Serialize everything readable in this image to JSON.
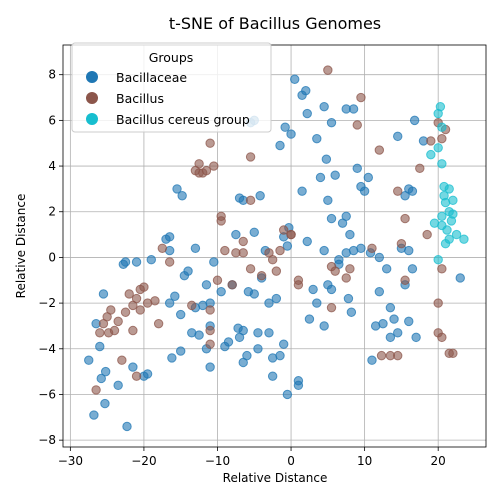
{
  "chart_data": {
    "type": "scatter",
    "title": "t-SNE of Bacillus Genomes",
    "xlabel": "Relative Distance",
    "ylabel": "Relative Distance",
    "xlim": [
      -31,
      26.5
    ],
    "ylim": [
      -8.3,
      9.3
    ],
    "xticks": [
      -30,
      -20,
      -10,
      0,
      10,
      20
    ],
    "yticks": [
      -8,
      -6,
      -4,
      -2,
      0,
      2,
      4,
      6,
      8
    ],
    "grid": true,
    "legend": {
      "title": "Groups",
      "placement": "top-left"
    },
    "series": [
      {
        "name": "Bacillaceae",
        "color": "#1f77b4",
        "points": [
          [
            -27.5,
            -4.5
          ],
          [
            -26.8,
            -6.9
          ],
          [
            -26.5,
            -2.9
          ],
          [
            -26,
            -3.9
          ],
          [
            -25.8,
            -5.3
          ],
          [
            -25.5,
            -1.6
          ],
          [
            -25.2,
            -5
          ],
          [
            -25.3,
            -6.4
          ],
          [
            -23.5,
            -5.6
          ],
          [
            -22.8,
            -0.3
          ],
          [
            -22.5,
            -0.2
          ],
          [
            -22.3,
            -7.4
          ],
          [
            -21.5,
            -4.8
          ],
          [
            -21,
            -0.2
          ],
          [
            -20,
            -5.2
          ],
          [
            -19.5,
            -5.1
          ],
          [
            -19,
            -0.1
          ],
          [
            -17,
            0.8
          ],
          [
            -16.5,
            0.9
          ],
          [
            -16.2,
            -4.4
          ],
          [
            -16.5,
            0.3
          ],
          [
            -16.5,
            -2
          ],
          [
            -15.8,
            -1.7
          ],
          [
            -15.5,
            3.0
          ],
          [
            -15,
            -4.1
          ],
          [
            -15,
            -2.5
          ],
          [
            -14.8,
            2.7
          ],
          [
            -14.5,
            -0.8
          ],
          [
            -14,
            -0.6
          ],
          [
            -13.5,
            -3.3
          ],
          [
            -13,
            0.4
          ],
          [
            -13,
            -2.2
          ],
          [
            -12.5,
            -3.4
          ],
          [
            -12,
            -2.1
          ],
          [
            -11.5,
            -4.0
          ],
          [
            -11,
            -4.8
          ],
          [
            -11,
            -3.0
          ],
          [
            -11.5,
            -1.2
          ],
          [
            -11,
            -2.0
          ],
          [
            -10.5,
            -0.2
          ],
          [
            -9.5,
            -1.5
          ],
          [
            -9,
            -3.9
          ],
          [
            -8.5,
            -3.7
          ],
          [
            -8,
            -1.2
          ],
          [
            -7.5,
            1.0
          ],
          [
            -7.2,
            -3.1
          ],
          [
            -7,
            -3.5
          ],
          [
            -7,
            2.6
          ],
          [
            -6.5,
            -3.2
          ],
          [
            -6.5,
            2.5
          ],
          [
            -6.5,
            -4.6
          ],
          [
            -6,
            -4.3
          ],
          [
            -5.8,
            -1.5
          ],
          [
            -5.5,
            5.9
          ],
          [
            -5,
            -1.6
          ],
          [
            -5,
            6.0
          ],
          [
            -5,
            1.1
          ],
          [
            -4.5,
            -3.3
          ],
          [
            -4.5,
            -4.0
          ],
          [
            -4.2,
            2.7
          ],
          [
            -4,
            -0.9
          ],
          [
            -3.5,
            0.3
          ],
          [
            -3,
            -2.0
          ],
          [
            -3,
            -3.3
          ],
          [
            -2.5,
            -5.2
          ],
          [
            -2.5,
            -4.4
          ],
          [
            -2,
            -1.8
          ],
          [
            -1.5,
            4.9
          ],
          [
            -1.5,
            -4.3
          ],
          [
            -1,
            0.9
          ],
          [
            -1,
            -3.8
          ],
          [
            -0.8,
            5.7
          ],
          [
            -0.5,
            0.5
          ],
          [
            -0.5,
            -6.0
          ],
          [
            -0.3,
            1.3
          ],
          [
            0,
            5.4
          ],
          [
            0.5,
            7.8
          ],
          [
            1,
            -5.6
          ],
          [
            1,
            -5.4
          ],
          [
            1.5,
            7.1
          ],
          [
            1.5,
            2.9
          ],
          [
            2,
            7.3
          ],
          [
            2.2,
            6.3
          ],
          [
            2.2,
            0.7
          ],
          [
            2.5,
            -2.7
          ],
          [
            3,
            -1.4
          ],
          [
            3.5,
            -2.0
          ],
          [
            3.5,
            5.2
          ],
          [
            4,
            3.5
          ],
          [
            4.5,
            6.6
          ],
          [
            4.5,
            0.3
          ],
          [
            4.5,
            -3.0
          ],
          [
            4.8,
            4.3
          ],
          [
            5,
            2.5
          ],
          [
            5,
            -1.2
          ],
          [
            5.5,
            5.9
          ],
          [
            5.5,
            1.7
          ],
          [
            5.5,
            -1.4
          ],
          [
            6,
            3.6
          ],
          [
            6.5,
            -0.1
          ],
          [
            6.5,
            -0.3
          ],
          [
            7,
            1.5
          ],
          [
            7.5,
            1.8
          ],
          [
            7.5,
            0.2
          ],
          [
            7.5,
            6.5
          ],
          [
            7.8,
            -1.8
          ],
          [
            8,
            1.0
          ],
          [
            8.2,
            -2.4
          ],
          [
            8.5,
            6.5
          ],
          [
            8.5,
            0.3
          ],
          [
            9,
            3.9
          ],
          [
            9.5,
            0.4
          ],
          [
            9.5,
            3.1
          ],
          [
            10,
            2.9
          ],
          [
            10.5,
            3.5
          ],
          [
            10.8,
            0.2
          ],
          [
            11,
            -4.5
          ],
          [
            11.5,
            -3.0
          ],
          [
            12,
            -1.5
          ],
          [
            12,
            0.0
          ],
          [
            12.5,
            -2.9
          ],
          [
            13,
            -0.5
          ],
          [
            13.5,
            -2.2
          ],
          [
            13.5,
            -3.5
          ],
          [
            14,
            -2.7
          ],
          [
            14.5,
            -3.3
          ],
          [
            14.5,
            5.3
          ],
          [
            15,
            0.4
          ],
          [
            15.5,
            2.7
          ],
          [
            15.5,
            -1.2
          ],
          [
            16,
            0.3
          ],
          [
            16,
            -2.8
          ],
          [
            16,
            3.0
          ],
          [
            16.5,
            2.9
          ],
          [
            16.8,
            6.0
          ],
          [
            16.5,
            -0.5
          ],
          [
            17,
            -3.5
          ],
          [
            18,
            5.1
          ],
          [
            23,
            -0.9
          ]
        ]
      },
      {
        "name": "Bacillus",
        "color": "#8c564b",
        "points": [
          [
            -26.5,
            -5.8
          ],
          [
            -26,
            -3.3
          ],
          [
            -25.5,
            -2.9
          ],
          [
            -25,
            -2.6
          ],
          [
            -24.8,
            -3.3
          ],
          [
            -24.5,
            -2.3
          ],
          [
            -24,
            -3.2
          ],
          [
            -23.5,
            -2.8
          ],
          [
            -23,
            -4.5
          ],
          [
            -22.5,
            -2.4
          ],
          [
            -22,
            -1.6
          ],
          [
            -21.5,
            -2.1
          ],
          [
            -21.5,
            -3.2
          ],
          [
            -21,
            -1.8
          ],
          [
            -21,
            -5.2
          ],
          [
            -20.5,
            -1.4
          ],
          [
            -20.5,
            -2.3
          ],
          [
            -20,
            -1.3
          ],
          [
            -19.5,
            -2.0
          ],
          [
            -18.5,
            -1.9
          ],
          [
            -18,
            -2.9
          ],
          [
            -17.5,
            0.4
          ],
          [
            -16.5,
            -0.2
          ],
          [
            -13.5,
            -2.1
          ],
          [
            -13,
            3.8
          ],
          [
            -12.5,
            3.7
          ],
          [
            -12.5,
            4.1
          ],
          [
            -12,
            3.7
          ],
          [
            -11.5,
            3.8
          ],
          [
            -11,
            -3.8
          ],
          [
            -11,
            -3.2
          ],
          [
            -11,
            -2.3
          ],
          [
            -10.5,
            4.0
          ],
          [
            -11,
            5.0
          ],
          [
            -10,
            -1.0
          ],
          [
            -9.5,
            1.8
          ],
          [
            -9.5,
            1.6
          ],
          [
            -9,
            0.3
          ],
          [
            -8,
            -1.2
          ],
          [
            -7.5,
            0.2
          ],
          [
            -6.5,
            0.7
          ],
          [
            -6.5,
            0.2
          ],
          [
            -5.5,
            2.5
          ],
          [
            -5.5,
            -0.5
          ],
          [
            -5.5,
            4.4
          ],
          [
            -4,
            -0.8
          ],
          [
            -3,
            0.2
          ],
          [
            -2.5,
            -0.1
          ],
          [
            -2,
            -0.6
          ],
          [
            -1.5,
            0.3
          ],
          [
            -1,
            1.2
          ],
          [
            0,
            1.0
          ],
          [
            0,
            1.0
          ],
          [
            1,
            -1.2
          ],
          [
            1,
            -1.0
          ],
          [
            5,
            8.2
          ],
          [
            5.5,
            -2.2
          ],
          [
            5.5,
            -0.4
          ],
          [
            6,
            -0.6
          ],
          [
            7.5,
            -0.9
          ],
          [
            8,
            -0.5
          ],
          [
            9,
            5.8
          ],
          [
            9.5,
            7.0
          ],
          [
            11,
            0.4
          ],
          [
            12,
            4.7
          ],
          [
            12.3,
            -4.3
          ],
          [
            13.5,
            -4.3
          ],
          [
            14.5,
            -4.3
          ],
          [
            14.5,
            2.9
          ],
          [
            15,
            0.6
          ],
          [
            15.5,
            1.7
          ],
          [
            15.5,
            -1.0
          ],
          [
            17.5,
            3.9
          ],
          [
            18.5,
            1.0
          ],
          [
            19,
            5.1
          ],
          [
            20,
            5.9
          ],
          [
            20.5,
            5.2
          ],
          [
            20,
            -2.0
          ],
          [
            20,
            -3.3
          ],
          [
            20.5,
            -3.5
          ],
          [
            21.5,
            -4.2
          ],
          [
            22,
            -4.2
          ],
          [
            21,
            5.6
          ],
          [
            20.5,
            -0.5
          ]
        ]
      },
      {
        "name": "Bacillus cereus group",
        "color": "#17becf",
        "points": [
          [
            19,
            4.5
          ],
          [
            19.5,
            1.5
          ],
          [
            20,
            6.3
          ],
          [
            20,
            4.8
          ],
          [
            20.3,
            6.6
          ],
          [
            20.5,
            5.7
          ],
          [
            20.5,
            4.1
          ],
          [
            20.5,
            1.8
          ],
          [
            20.5,
            1.4
          ],
          [
            20.8,
            3.1
          ],
          [
            21,
            2.4
          ],
          [
            21,
            0.6
          ],
          [
            21.2,
            1.2
          ],
          [
            21.5,
            3.0
          ],
          [
            21.5,
            2.0
          ],
          [
            21.8,
            1.6
          ],
          [
            22,
            2.5
          ],
          [
            22,
            1.9
          ],
          [
            22.5,
            1.0
          ],
          [
            23.5,
            0.8
          ],
          [
            21.5,
            0.8
          ],
          [
            20.8,
            2.7
          ],
          [
            20,
            -0.1
          ]
        ]
      }
    ]
  }
}
